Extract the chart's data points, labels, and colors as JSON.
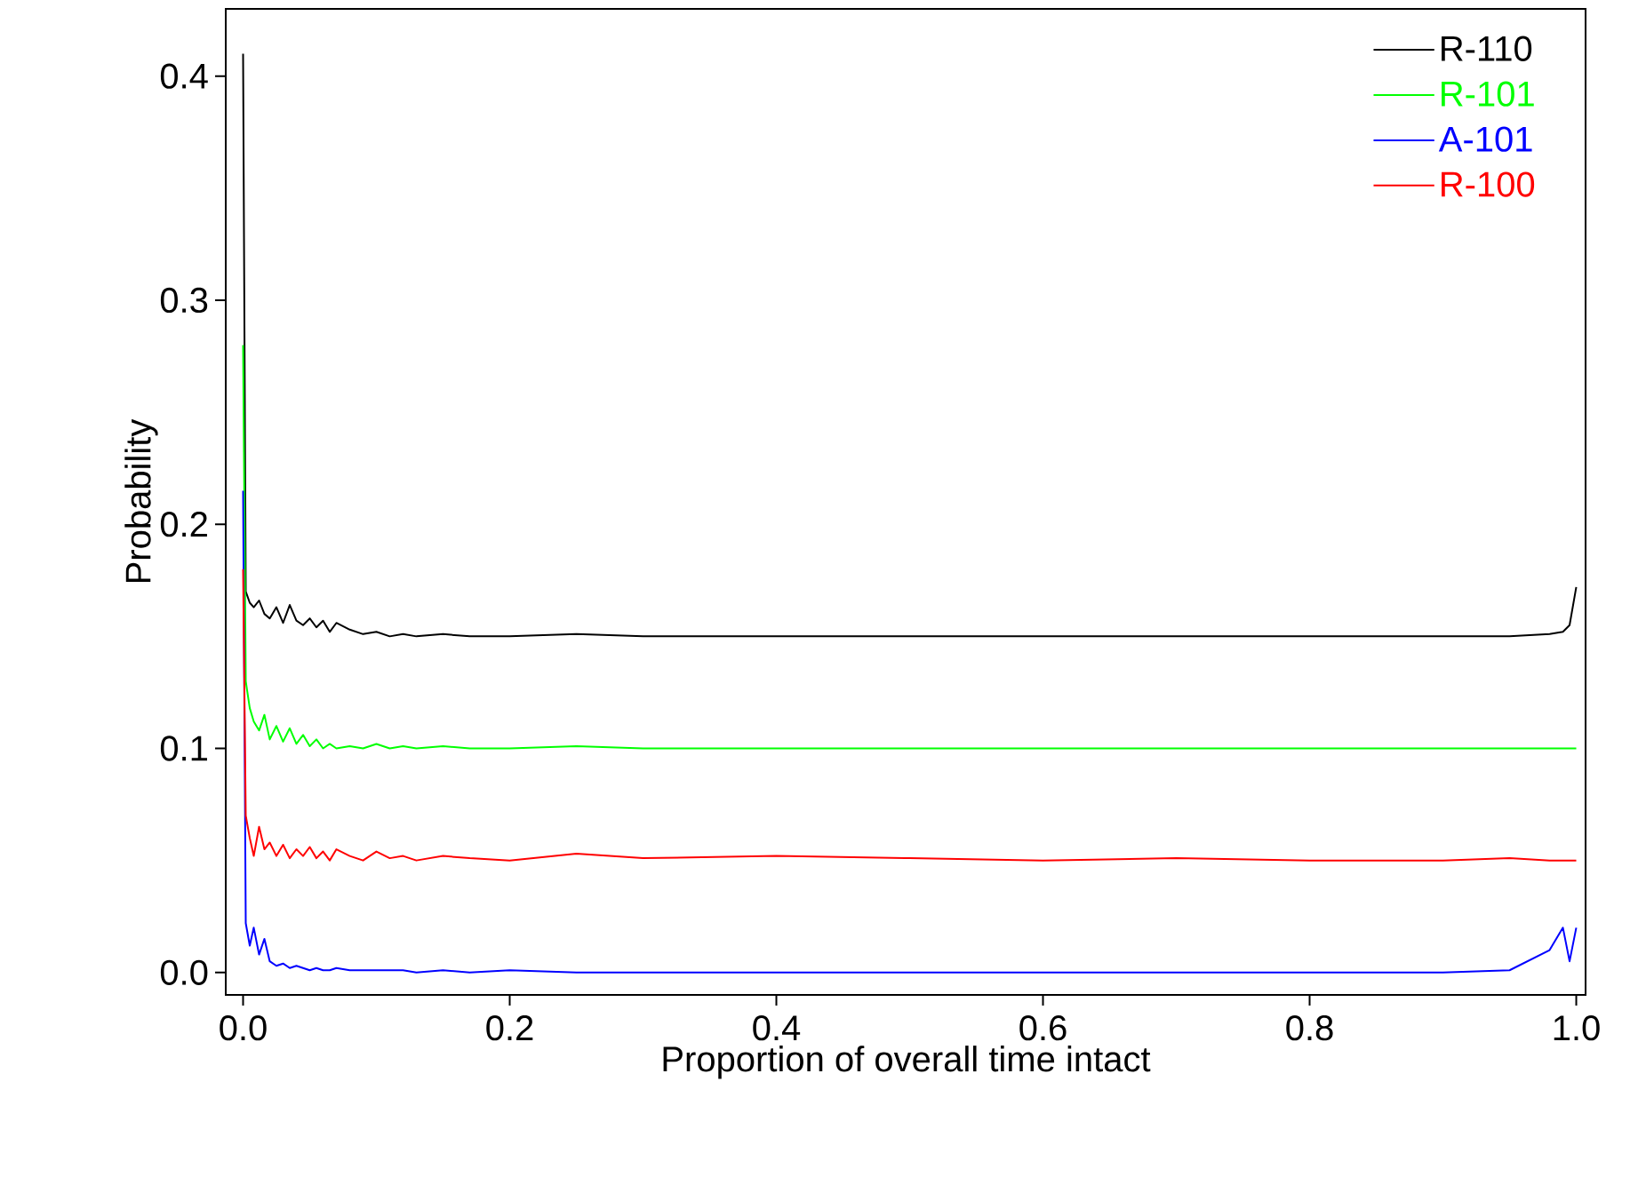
{
  "chart_data": {
    "type": "line",
    "xlabel": "Proportion of overall time intact",
    "ylabel": "Probability",
    "xlim": [
      -0.013,
      1.007
    ],
    "ylim": [
      -0.01,
      0.43
    ],
    "xticks": [
      {
        "value": 0,
        "label": "0.0"
      },
      0.2,
      0.4,
      0.6,
      0.8,
      {
        "value": 1,
        "label": "1.0"
      }
    ],
    "yticks": [
      {
        "value": 0,
        "label": "0.0"
      },
      0.1,
      0.2,
      0.3,
      0.4
    ],
    "x": [
      0,
      0.002,
      0.005,
      0.008,
      0.012,
      0.016,
      0.02,
      0.025,
      0.03,
      0.035,
      0.04,
      0.045,
      0.05,
      0.055,
      0.06,
      0.065,
      0.07,
      0.08,
      0.09,
      0.1,
      0.11,
      0.12,
      0.13,
      0.15,
      0.17,
      0.2,
      0.25,
      0.3,
      0.4,
      0.5,
      0.6,
      0.7,
      0.8,
      0.9,
      0.95,
      0.98,
      0.99,
      0.995,
      1.0
    ],
    "legend": "top right",
    "marker": "none",
    "line_style": "solid",
    "series": [
      {
        "name": "R-110",
        "color": "#000000",
        "values": [
          0.41,
          0.17,
          0.165,
          0.163,
          0.166,
          0.16,
          0.158,
          0.163,
          0.156,
          0.164,
          0.157,
          0.155,
          0.158,
          0.154,
          0.157,
          0.152,
          0.156,
          0.153,
          0.151,
          0.152,
          0.15,
          0.151,
          0.15,
          0.151,
          0.15,
          0.15,
          0.151,
          0.15,
          0.15,
          0.15,
          0.15,
          0.15,
          0.15,
          0.15,
          0.15,
          0.151,
          0.152,
          0.155,
          0.172
        ]
      },
      {
        "name": "R-101",
        "color": "#00ff00",
        "values": [
          0.28,
          0.13,
          0.118,
          0.112,
          0.108,
          0.115,
          0.104,
          0.11,
          0.103,
          0.109,
          0.102,
          0.106,
          0.101,
          0.104,
          0.1,
          0.102,
          0.1,
          0.101,
          0.1,
          0.102,
          0.1,
          0.101,
          0.1,
          0.101,
          0.1,
          0.1,
          0.101,
          0.1,
          0.1,
          0.1,
          0.1,
          0.1,
          0.1,
          0.1,
          0.1,
          0.1,
          0.1,
          0.1,
          0.1
        ]
      },
      {
        "name": "A-101",
        "color": "#0000ff",
        "values": [
          0.215,
          0.022,
          0.012,
          0.02,
          0.008,
          0.015,
          0.005,
          0.003,
          0.004,
          0.002,
          0.003,
          0.002,
          0.001,
          0.002,
          0.001,
          0.001,
          0.002,
          0.001,
          0.001,
          0.001,
          0.001,
          0.001,
          0,
          0.001,
          0,
          0.001,
          0,
          0,
          0,
          0,
          0,
          0,
          0,
          0,
          0.001,
          0.01,
          0.02,
          0.005,
          0.02
        ]
      },
      {
        "name": "R-100",
        "color": "#ff0000",
        "values": [
          0.18,
          0.07,
          0.06,
          0.052,
          0.065,
          0.055,
          0.058,
          0.052,
          0.057,
          0.051,
          0.055,
          0.052,
          0.056,
          0.051,
          0.054,
          0.05,
          0.055,
          0.052,
          0.05,
          0.054,
          0.051,
          0.052,
          0.05,
          0.052,
          0.051,
          0.05,
          0.053,
          0.051,
          0.052,
          0.051,
          0.05,
          0.051,
          0.05,
          0.05,
          0.051,
          0.05,
          0.05,
          0.05,
          0.05
        ]
      }
    ]
  }
}
